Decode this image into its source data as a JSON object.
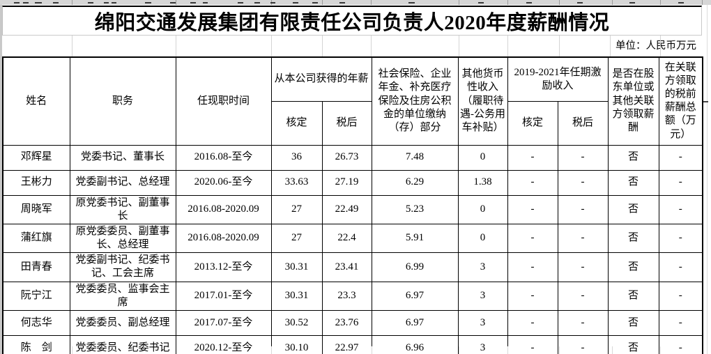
{
  "title": "绵阳交通发展集团有限责任公司负责人2020年度薪酬情况",
  "unit_note": "单位：人民币万元",
  "table": {
    "headers": {
      "name": "姓名",
      "position": "职务",
      "tenure": "任现职时间",
      "company_salary_group": "从本公司获得的年薪",
      "approved": "核定",
      "after_tax": "税后",
      "social_insurance": "社会保险、企业年金、补充医疗保险及住房公积金的单位缴纳（存）部分",
      "other_monetary_income": "其他货币性收入（履职待遇-公务用车补贴）",
      "incentive_group": "2019-2021年任期激励收入",
      "incentive_approved": "核定",
      "incentive_after_tax": "税后",
      "related_party_salary": "是否在股东单位或其他关联方领取薪酬",
      "related_party_total": "在关联方领取的税前薪酬总额（万元）"
    },
    "rows": [
      {
        "name": "邓辉星",
        "position": "党委书记、董事长",
        "tenure": "2016.08-至今",
        "approved": "36",
        "after_tax": "26.73",
        "social": "7.48",
        "other_income": "0",
        "incentive_approved": "-",
        "incentive_after_tax": "-",
        "related": "否",
        "related_total": "-"
      },
      {
        "name": "王彬力",
        "position": "党委副书记、总经理",
        "tenure": "2020.06-至今",
        "approved": "33.63",
        "after_tax": "27.19",
        "social": "6.29",
        "other_income": "1.38",
        "incentive_approved": "-",
        "incentive_after_tax": "-",
        "related": "否",
        "related_total": "-"
      },
      {
        "name": "周晓军",
        "position": "原党委书记、副董事长",
        "tenure": "2016.08-2020.09",
        "approved": "27",
        "after_tax": "22.49",
        "social": "5.23",
        "other_income": "0",
        "incentive_approved": "-",
        "incentive_after_tax": "-",
        "related": "否",
        "related_total": "-"
      },
      {
        "name": "蒲红旗",
        "position": "原党委委员、副董事长、总经理",
        "tenure": "2016.08-2020.09",
        "approved": "27",
        "after_tax": "22.4",
        "social": "5.91",
        "other_income": "0",
        "incentive_approved": "-",
        "incentive_after_tax": "-",
        "related": "否",
        "related_total": "-"
      },
      {
        "name": "田青春",
        "position": "党委副书记、纪委书记、工会主席",
        "tenure": "2013.12-至今",
        "approved": "30.31",
        "after_tax": "23.41",
        "social": "6.99",
        "other_income": "3",
        "incentive_approved": "-",
        "incentive_after_tax": "-",
        "related": "否",
        "related_total": "-"
      },
      {
        "name": "阮宁江",
        "position": "党委委员、监事会主席",
        "tenure": "2017.01-至今",
        "approved": "30.31",
        "after_tax": "23.3",
        "social": "6.97",
        "other_income": "3",
        "incentive_approved": "-",
        "incentive_after_tax": "-",
        "related": "否",
        "related_total": "-"
      },
      {
        "name": "何志华",
        "position": "党委委员、副总经理",
        "tenure": "2017.07-至今",
        "approved": "30.52",
        "after_tax": "23.76",
        "social": "6.97",
        "other_income": "3",
        "incentive_approved": "-",
        "incentive_after_tax": "-",
        "related": "否",
        "related_total": "-"
      },
      {
        "name": "陈　剑",
        "position": "党委委员、纪委书记",
        "tenure": "2020.12-至今",
        "approved": "30.10",
        "after_tax": "22.97",
        "social": "6.96",
        "other_income": "3",
        "incentive_approved": "-",
        "incentive_after_tax": "-",
        "related": "否",
        "related_total": "-"
      }
    ]
  }
}
